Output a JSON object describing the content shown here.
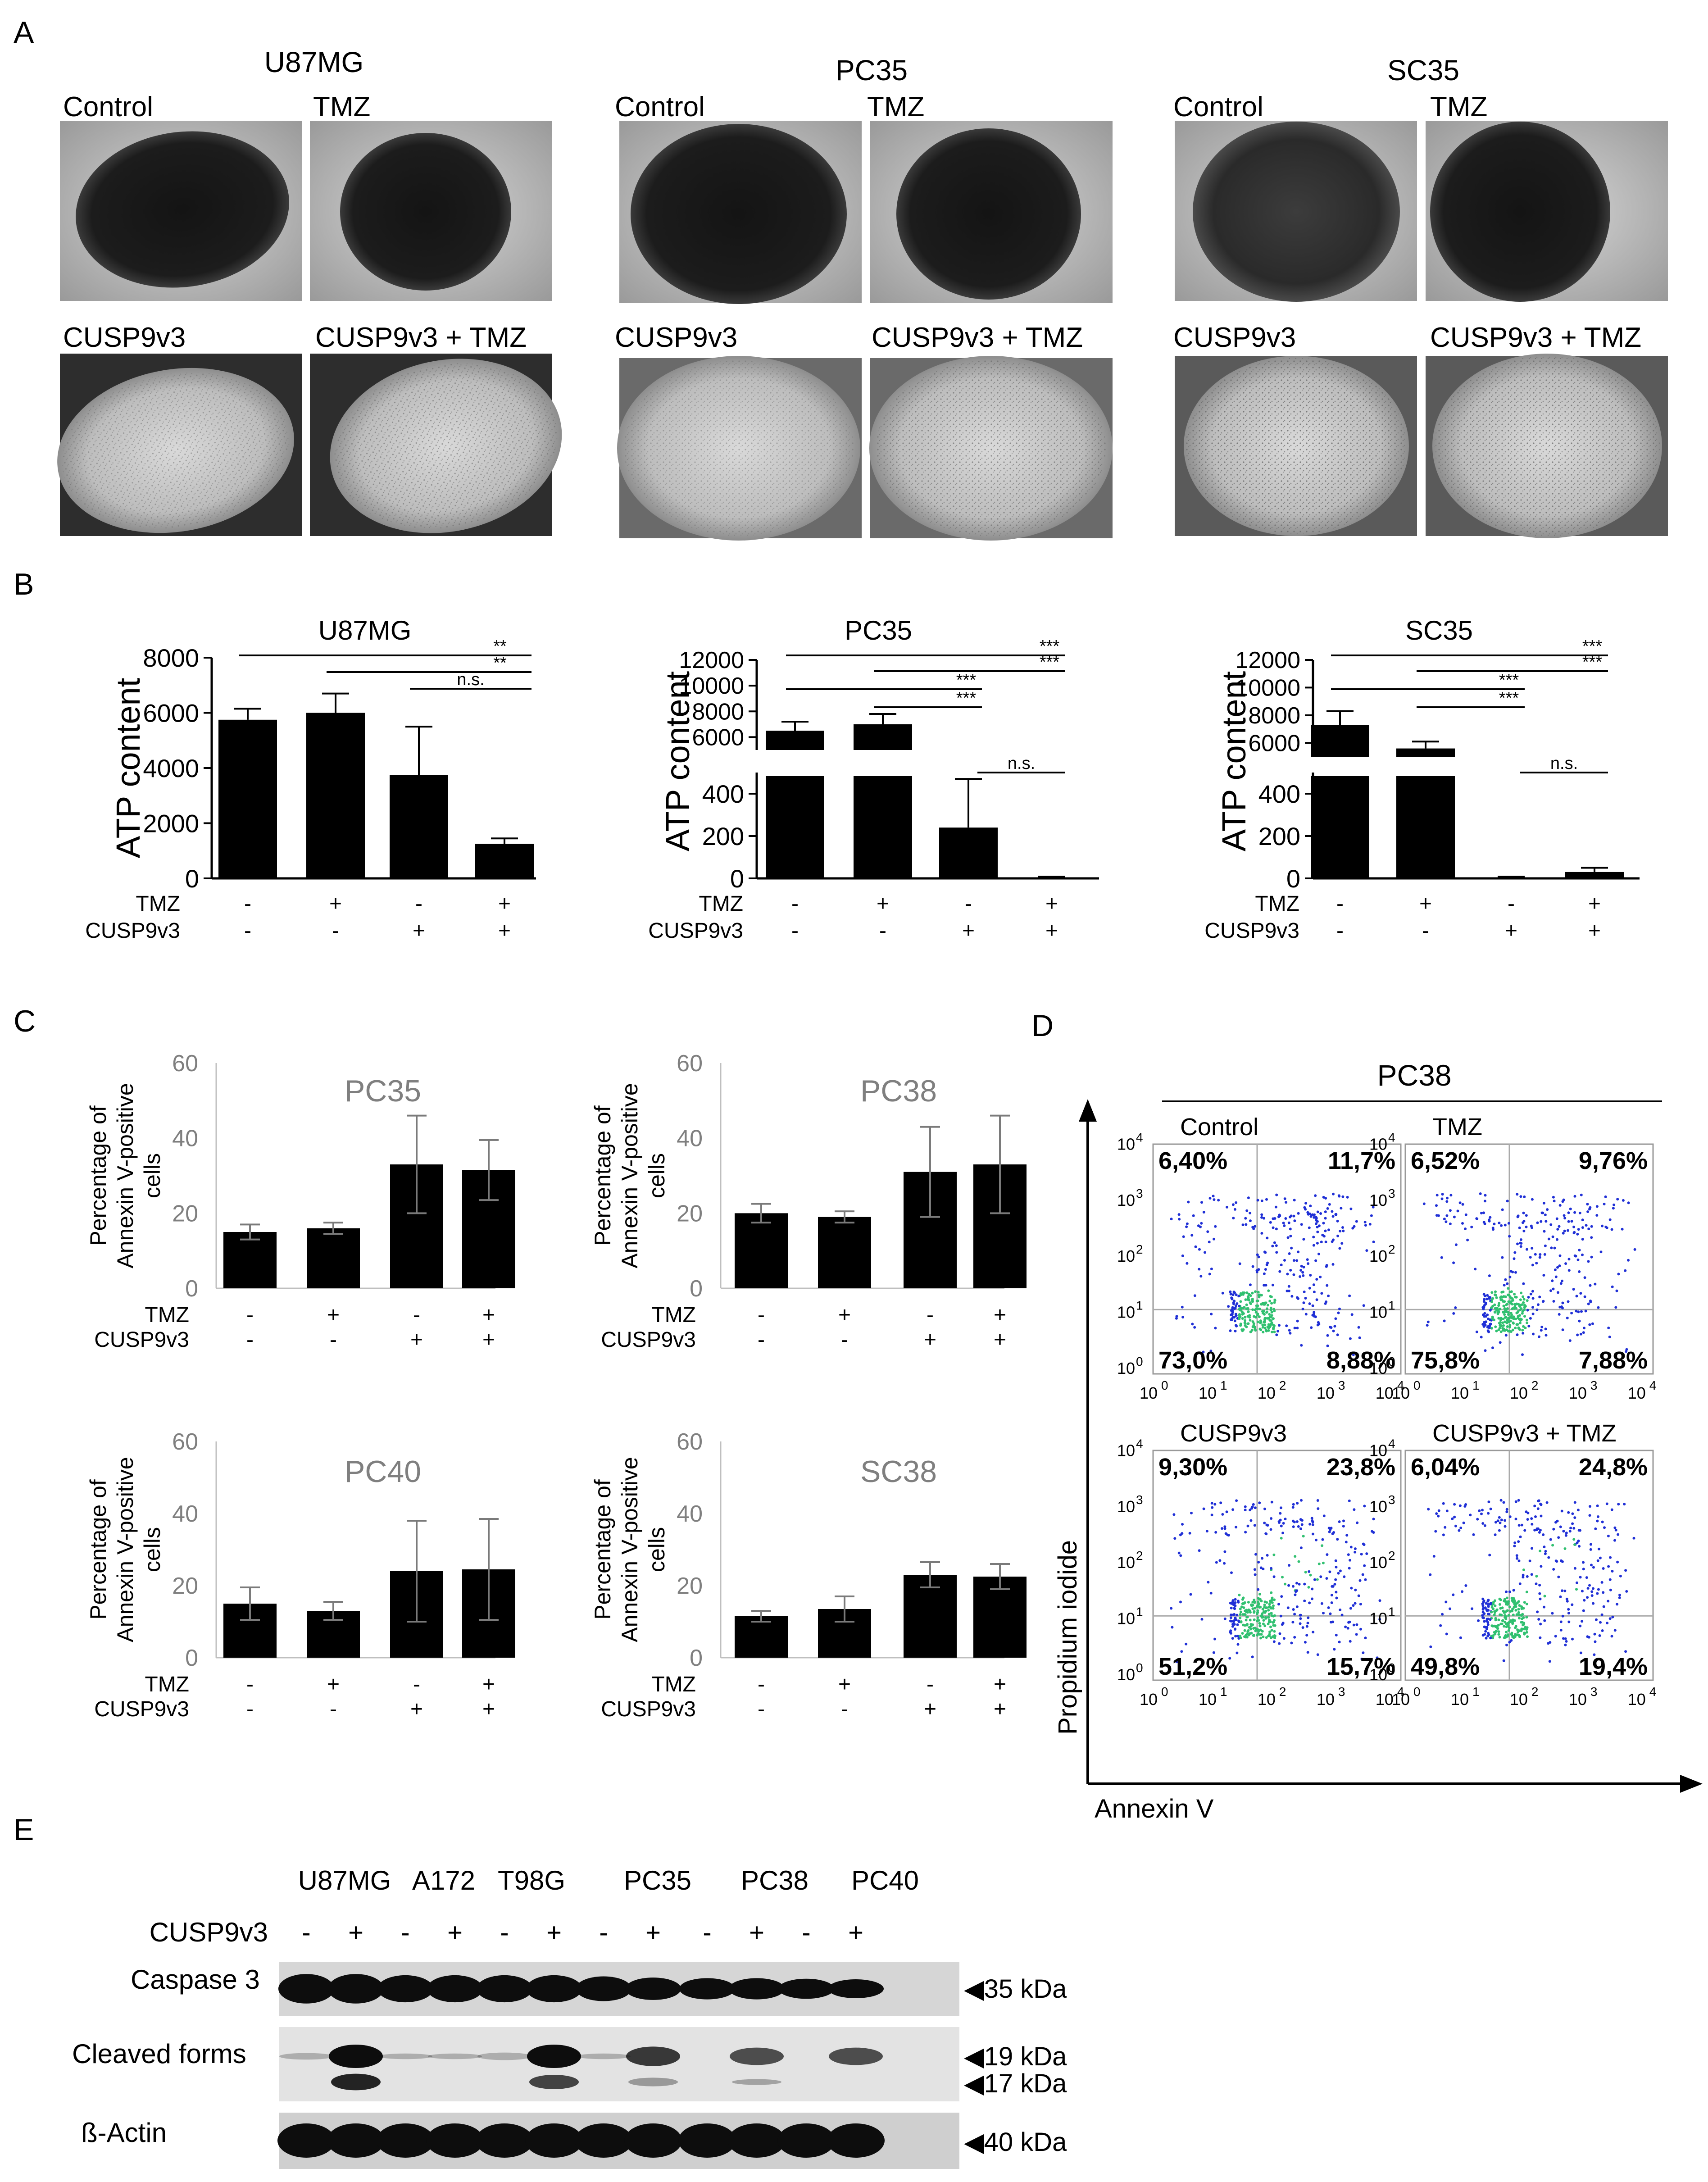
{
  "colors": {
    "bar": "#000000",
    "grey_text": "#7f7f7f",
    "axis_grey": "#bfbfbf",
    "dot_blue": "#1f2fd6",
    "dot_green": "#30c070",
    "blot_dark": "#0d0d0d"
  },
  "panelA": {
    "letter": "A",
    "groups": [
      {
        "title": "U87MG",
        "labels": [
          "Control",
          "TMZ",
          "CUSP9v3",
          "CUSP9v3 + TMZ"
        ]
      },
      {
        "title": "PC35",
        "labels": [
          "Control",
          "TMZ",
          "CUSP9v3",
          "CUSP9v3 + TMZ"
        ]
      },
      {
        "title": "SC35",
        "labels": [
          "Control",
          "TMZ",
          "CUSP9v3",
          "CUSP9v3 + TMZ"
        ]
      }
    ]
  },
  "panelB": {
    "letter": "B",
    "row_labels": [
      "TMZ",
      "CUSP9v3"
    ],
    "treatment_signs": [
      [
        "-",
        "+",
        "-",
        "+"
      ],
      [
        "-",
        "-",
        "+",
        "+"
      ]
    ],
    "ylabel": "ATP content"
  },
  "panelC": {
    "letter": "C",
    "ylabel_line1": "Percentage of",
    "ylabel_line2": "Annexin V-positive",
    "ylabel_line3": "cells",
    "row_labels": [
      "TMZ",
      "CUSP9v3"
    ],
    "treatment_signs": [
      [
        "-",
        "+",
        "-",
        "+"
      ],
      [
        "-",
        "-",
        "+",
        "+"
      ]
    ]
  },
  "panelD": {
    "letter": "D",
    "title": "PC38",
    "xlabel": "Annexin V",
    "ylabel": "Propidium iodide",
    "axis_ticks": [
      "10",
      "0",
      "10",
      "1",
      "10",
      "2",
      "10",
      "3",
      "10",
      "4"
    ],
    "plots": [
      {
        "label": "Control",
        "q": [
          "6,40%",
          "11,7%",
          "73,0%",
          "8,88%"
        ]
      },
      {
        "label": "TMZ",
        "q": [
          "6,52%",
          "9,76%",
          "75,8%",
          "7,88%"
        ]
      },
      {
        "label": "CUSP9v3",
        "q": [
          "9,30%",
          "23,8%",
          "51,2%",
          "15,7%"
        ]
      },
      {
        "label": "CUSP9v3 + TMZ",
        "q": [
          "6,04%",
          "24,8%",
          "49,8%",
          "19,4%"
        ]
      }
    ]
  },
  "panelE": {
    "letter": "E",
    "cell_lines": [
      "U87MG",
      "A172",
      "T98G",
      "PC35",
      "PC38",
      "PC40"
    ],
    "cusp_label": "CUSP9v3",
    "cusp_signs": [
      "-",
      "+",
      "-",
      "+",
      "-",
      "+",
      "-",
      "+",
      "-",
      "+",
      "-",
      "+"
    ],
    "rows": [
      {
        "label": "Caspase 3",
        "markers": [
          "35 kDa"
        ]
      },
      {
        "label": "Cleaved forms",
        "markers": [
          "19 kDa",
          "17 kDa"
        ]
      },
      {
        "label": "ß-Actin",
        "markers": [
          "40 kDa"
        ]
      }
    ]
  },
  "chart_data": [
    {
      "type": "bar",
      "title": "U87MG",
      "ylabel": "ATP content",
      "categories": [
        "Control",
        "TMZ",
        "CUSP9v3",
        "CUSP9v3 + TMZ"
      ],
      "values": [
        5750,
        6000,
        3750,
        1250
      ],
      "errors": [
        400,
        700,
        1750,
        200
      ],
      "ylim": [
        0,
        8000
      ],
      "yticks": [
        "0",
        "2000",
        "4000",
        "6000",
        "8000"
      ],
      "significance": [
        {
          "from": 0,
          "to": 3,
          "label": "**"
        },
        {
          "from": 1,
          "to": 3,
          "label": "**"
        },
        {
          "from": 2,
          "to": 3,
          "label": "n.s."
        }
      ]
    },
    {
      "type": "bar",
      "title": "PC35",
      "ylabel": "ATP content",
      "broken_axis": true,
      "categories": [
        "Control",
        "TMZ",
        "CUSP9v3",
        "CUSP9v3 + TMZ"
      ],
      "values": [
        6500,
        7000,
        240,
        5
      ],
      "errors": [
        700,
        800,
        230,
        3
      ],
      "lower_range": [
        0,
        500
      ],
      "upper_range": [
        5000,
        12000
      ],
      "yticks_lower": [
        "0",
        "200",
        "400"
      ],
      "yticks_upper": [
        "6000",
        "8000",
        "10000",
        "12000"
      ],
      "significance": [
        {
          "from": 0,
          "to": 3,
          "label": "***"
        },
        {
          "from": 1,
          "to": 3,
          "label": "***"
        },
        {
          "from": 0,
          "to": 2,
          "label": "***"
        },
        {
          "from": 1,
          "to": 2,
          "label": "***"
        },
        {
          "from": 2,
          "to": 3,
          "label": "n.s."
        }
      ]
    },
    {
      "type": "bar",
      "title": "SC35",
      "ylabel": "ATP content",
      "broken_axis": true,
      "categories": [
        "Control",
        "TMZ",
        "CUSP9v3",
        "CUSP9v3 + TMZ"
      ],
      "values": [
        7300,
        5600,
        5,
        30
      ],
      "errors": [
        1000,
        500,
        3,
        20
      ],
      "lower_range": [
        0,
        500
      ],
      "upper_range": [
        5000,
        12000
      ],
      "yticks_lower": [
        "0",
        "200",
        "400"
      ],
      "yticks_upper": [
        "6000",
        "8000",
        "10000",
        "12000"
      ],
      "significance": [
        {
          "from": 0,
          "to": 3,
          "label": "***"
        },
        {
          "from": 1,
          "to": 3,
          "label": "***"
        },
        {
          "from": 0,
          "to": 2,
          "label": "***"
        },
        {
          "from": 1,
          "to": 2,
          "label": "***"
        },
        {
          "from": 2,
          "to": 3,
          "label": "n.s."
        }
      ]
    },
    {
      "type": "bar",
      "title": "PC35",
      "ylabel": "Percentage of Annexin V-positive cells",
      "categories": [
        "Control",
        "TMZ",
        "CUSP9v3",
        "CUSP9v3 + TMZ"
      ],
      "values": [
        15,
        16,
        33,
        31.5
      ],
      "errors": [
        2,
        1.5,
        13,
        8
      ],
      "ylim": [
        0,
        60
      ],
      "yticks": [
        "0",
        "20",
        "40",
        "60"
      ]
    },
    {
      "type": "bar",
      "title": "PC38",
      "ylabel": "Percentage of Annexin V-positive cells",
      "categories": [
        "Control",
        "TMZ",
        "CUSP9v3",
        "CUSP9v3 + TMZ"
      ],
      "values": [
        20,
        19,
        31,
        33
      ],
      "errors": [
        2.5,
        1.5,
        12,
        13
      ],
      "ylim": [
        0,
        60
      ],
      "yticks": [
        "0",
        "20",
        "40",
        "60"
      ]
    },
    {
      "type": "bar",
      "title": "PC40",
      "ylabel": "Percentage of Annexin V-positive cells",
      "categories": [
        "Control",
        "TMZ",
        "CUSP9v3",
        "CUSP9v3 + TMZ"
      ],
      "values": [
        15,
        13,
        24,
        24.5
      ],
      "errors": [
        4.5,
        2.5,
        14,
        14
      ],
      "ylim": [
        0,
        60
      ],
      "yticks": [
        "0",
        "20",
        "40",
        "60"
      ]
    },
    {
      "type": "bar",
      "title": "SC38",
      "ylabel": "Percentage of Annexin V-positive cells",
      "categories": [
        "Control",
        "TMZ",
        "CUSP9v3",
        "CUSP9v3 + TMZ"
      ],
      "values": [
        11.5,
        13.5,
        23,
        22.5
      ],
      "errors": [
        1.5,
        3.5,
        3.5,
        3.5
      ],
      "ylim": [
        0,
        60
      ],
      "yticks": [
        "0",
        "20",
        "40",
        "60"
      ]
    }
  ]
}
